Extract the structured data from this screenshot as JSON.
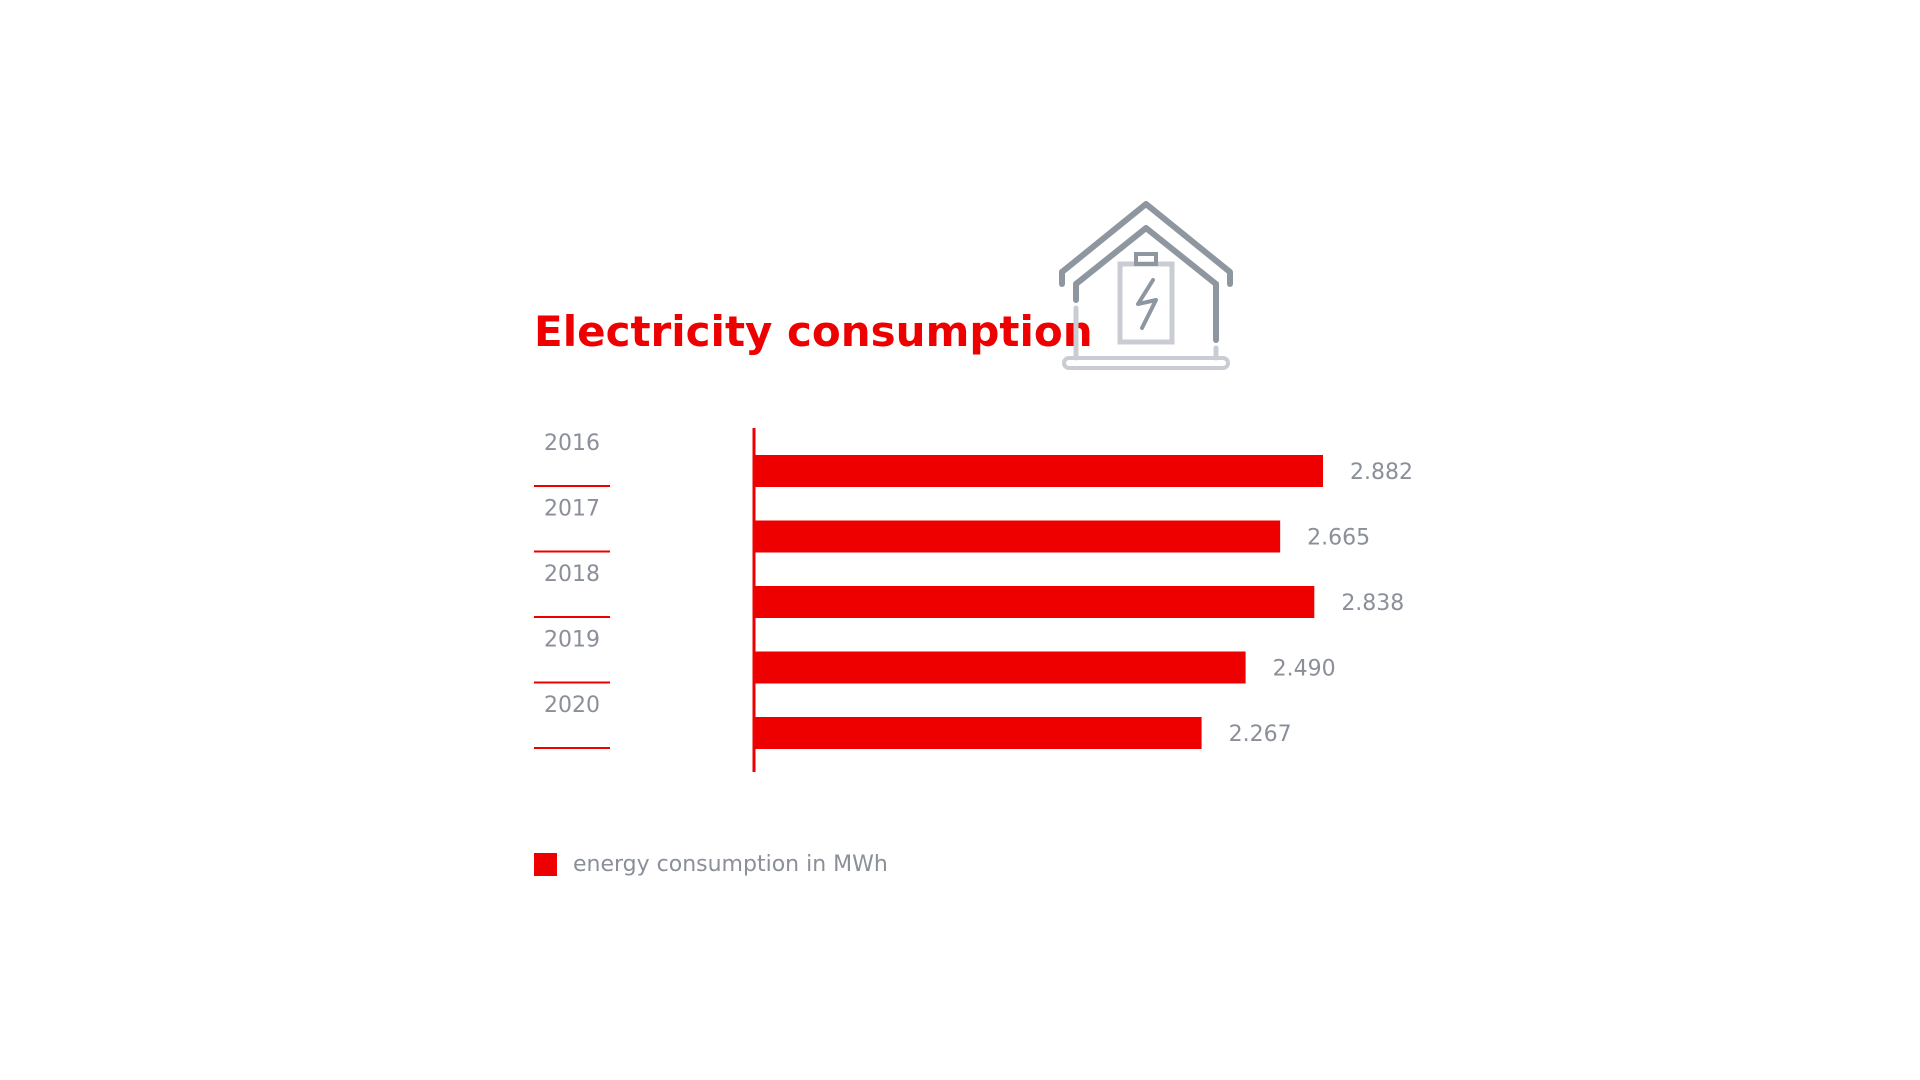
{
  "chart_data": {
    "type": "bar",
    "orientation": "horizontal",
    "title": "Electricity consumption",
    "categories": [
      "2016",
      "2017",
      "2018",
      "2019",
      "2020"
    ],
    "series": [
      {
        "name": "energy consumption in MWh",
        "values": [
          2882,
          2665,
          2838,
          2490,
          2267
        ],
        "value_labels": [
          "2.882",
          "2.665",
          "2.838",
          "2.490",
          "2.267"
        ]
      }
    ],
    "xlim": [
      0,
      3000
    ],
    "grid": false,
    "legend_position": "bottom-left"
  },
  "colors": {
    "bar": "#ee0000",
    "text_muted": "#8a8f99",
    "icon_stroke": "#8e96a0",
    "icon_light": "#c9ccd2"
  },
  "icons": {
    "title_icon": "house-battery-icon"
  }
}
